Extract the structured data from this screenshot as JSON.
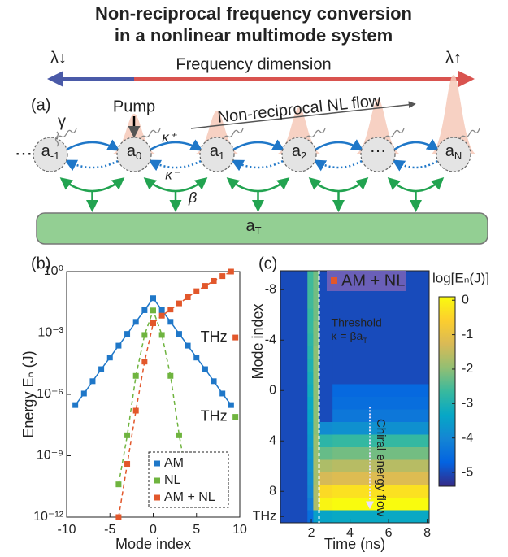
{
  "title_lines": [
    "Non-reciprocal frequency conversion",
    "in a nonlinear multimode system"
  ],
  "diagram": {
    "panel_label": "(a)",
    "lambda_left": "λ↓",
    "axis_label": "Frequency dimension",
    "lambda_right": "λ↑",
    "pump": "Pump",
    "flow": "Non-reciprocal NL flow",
    "gamma": "γ",
    "kappa_plus": "κ⁺",
    "kappa_minus": "κ⁻",
    "beta": "β",
    "ellipsis": "⋯",
    "nodes": [
      {
        "label": "a",
        "sub": "-1"
      },
      {
        "label": "a",
        "sub": "0"
      },
      {
        "label": "a",
        "sub": "1"
      },
      {
        "label": "a",
        "sub": "2"
      },
      {
        "label": "⋯"
      },
      {
        "label": "a",
        "sub": "N"
      }
    ],
    "reservoir": {
      "label": "a",
      "sub": "T"
    }
  },
  "chart_data": [
    {
      "type": "line",
      "panel_label": "(b)",
      "x_label": "Mode index",
      "y_label": "Energy Eₙ (J)",
      "yscale": "log",
      "xlim": [
        -10,
        10
      ],
      "ylim": [
        1e-12,
        1
      ],
      "xticks": [
        -10,
        -5,
        0,
        5,
        10
      ],
      "yticks": [
        {
          "value": 1,
          "label": "10⁰"
        },
        {
          "value": 0.001,
          "label": "10⁻³"
        },
        {
          "value": 1e-06,
          "label": "10⁻⁶"
        },
        {
          "value": 1e-09,
          "label": "10⁻⁹"
        },
        {
          "value": 1e-12,
          "label": "10⁻¹²"
        }
      ],
      "x": [
        -9,
        -8,
        -7,
        -6,
        -5,
        -4,
        -3,
        -2,
        -1,
        0,
        1,
        2,
        3,
        4,
        5,
        6,
        7,
        8,
        9
      ],
      "series": [
        {
          "name": "AM",
          "color": "#1f77c8",
          "dashed": false,
          "values": [
            3e-07,
            1.1e-06,
            4.4e-06,
            1.7e-05,
            6.3e-05,
            0.00024,
            0.0009,
            0.0035,
            0.013,
            0.05,
            0.013,
            0.0035,
            0.0009,
            0.00024,
            6.3e-05,
            1.7e-05,
            4.4e-06,
            1.1e-06,
            3e-07
          ]
        },
        {
          "name": "NL",
          "color": "#6fb43f",
          "dashed": true,
          "values": [
            null,
            null,
            null,
            null,
            null,
            4e-11,
            1e-08,
            8e-06,
            0.0008,
            0.0126,
            0.0008,
            8e-06,
            1e-08,
            4e-11,
            null,
            null,
            null,
            null,
            null
          ]
        },
        {
          "name": "AM + NL",
          "color": "#e2572b",
          "dashed": true,
          "values": [
            null,
            null,
            null,
            null,
            null,
            1e-12,
            4e-10,
            1.6e-07,
            4e-05,
            0.003,
            0.007,
            0.014,
            0.028,
            0.056,
            0.11,
            0.2,
            0.35,
            0.6,
            1
          ]
        }
      ],
      "annotations": [
        {
          "text": "THz",
          "x": 9.5,
          "y": 0.0006,
          "color": "#e2572b"
        },
        {
          "text": "THz",
          "x": 9.5,
          "y": 8e-08,
          "color": "#6fb43f"
        }
      ],
      "legend": "lower right"
    },
    {
      "type": "heatmap",
      "panel_label": "(c)",
      "x_label": "Time (ns)",
      "y_label": "Mode index",
      "colorbar_label": "log[Eₙ(J)]",
      "xlim": [
        0.4,
        8.1
      ],
      "ylim": [
        -9.5,
        10.5
      ],
      "xticks": [
        2,
        4,
        6,
        8
      ],
      "yticks": [
        -8,
        -4,
        0,
        4,
        8,
        {
          "value": 10,
          "label": "THz"
        }
      ],
      "x_edges": [
        0.4,
        1.8,
        2.1,
        2.4,
        3.1,
        8.1
      ],
      "y": [
        -9,
        -8,
        -7,
        -6,
        -5,
        -4,
        -3,
        -2,
        -1,
        0,
        1,
        2,
        3,
        4,
        5,
        6,
        7,
        8,
        9,
        10
      ],
      "z": [
        [
          -5,
          -2.6,
          -2.2,
          -5,
          -5
        ],
        [
          -5,
          -2.6,
          -2.2,
          -5,
          -5
        ],
        [
          -5,
          -2.6,
          -2.2,
          -5,
          -5
        ],
        [
          -5,
          -2.7,
          -2.2,
          -5,
          -5
        ],
        [
          -5,
          -2.7,
          -2.1,
          -5,
          -5
        ],
        [
          -5,
          -2.8,
          -2.1,
          -5,
          -5
        ],
        [
          -5,
          -2.9,
          -2.0,
          -5,
          -5
        ],
        [
          -5,
          -3.0,
          -2.0,
          -5,
          -5
        ],
        [
          -5,
          -3.1,
          -2.0,
          -5,
          -5
        ],
        [
          -5,
          -3.2,
          -2.0,
          -5,
          -4.6
        ],
        [
          -5,
          -3.3,
          -2.0,
          -5,
          -4.5
        ],
        [
          -5,
          -3.4,
          -2.0,
          -5,
          -4.3
        ],
        [
          -5,
          -3.5,
          -2.0,
          -3.9,
          -3.8
        ],
        [
          -5,
          -3.6,
          -1.9,
          -2.8,
          -2.7
        ],
        [
          -5,
          -3.7,
          -1.9,
          -2.3,
          -2.2
        ],
        [
          -5,
          -3.8,
          -1.8,
          -1.7,
          -1.6
        ],
        [
          -5,
          -3.9,
          -1.8,
          -1.3,
          -1.2
        ],
        [
          -5,
          -4.0,
          -1.7,
          -0.4,
          -0.3
        ],
        [
          -5,
          -4.2,
          -1.7,
          0,
          0.1
        ],
        [
          -5,
          -4.5,
          -3.5,
          -3.4,
          -3.3
        ]
      ],
      "clim": [
        -5.4,
        0.1
      ],
      "cticks": [
        0,
        -1,
        -2,
        -3,
        -4,
        -5
      ],
      "colormap": [
        "#352a87",
        "#0363e1",
        "#1485d4",
        "#06a7c6",
        "#38b99e",
        "#92bf73",
        "#d9ba56",
        "#fcce2e",
        "#f9fb0e"
      ],
      "threshold": {
        "x": 2.4,
        "text": "Threshold",
        "formula": "κ = βa",
        "formula_sub": "T"
      },
      "flow_text": "Chiral energy flow",
      "legend": {
        "name": "AM + NL",
        "color": "#e2572b"
      }
    }
  ]
}
